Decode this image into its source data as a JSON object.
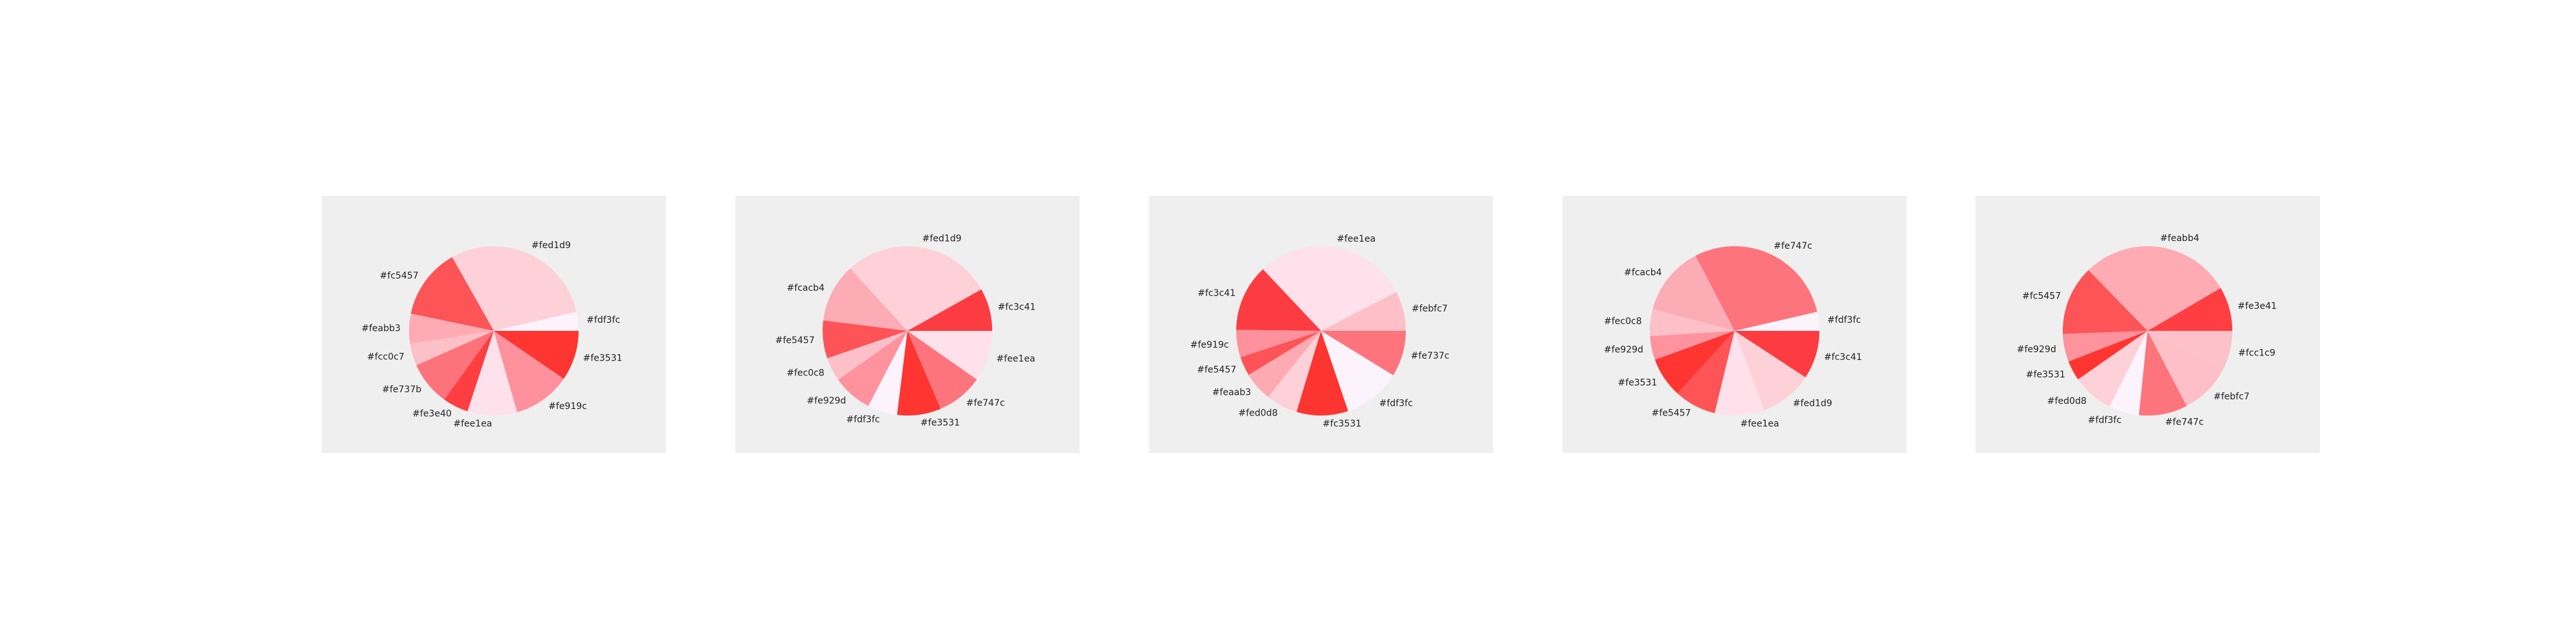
{
  "chart_data": [
    {
      "type": "pie",
      "labels": [
        "#fdf3fc",
        "#fed1d9",
        "#fc5457",
        "#feabb3",
        "#fcc0c7",
        "#fe737b",
        "#fe3e40",
        "#fee1ea",
        "#fe919c",
        "#fe3531"
      ],
      "values": [
        3.1,
        25.3,
        11.6,
        4.9,
        3.6,
        7.2,
        4.2,
        8.1,
        9.4,
        8.2
      ],
      "colors": [
        "#fdf3fc",
        "#fed1d9",
        "#fc5457",
        "#feabb3",
        "#fcc0c7",
        "#fe737b",
        "#fe3e40",
        "#fee1ea",
        "#fe919c",
        "#fe3531"
      ]
    },
    {
      "type": "pie",
      "labels": [
        "#fc3c41",
        "#fed1d9",
        "#fcacb4",
        "#fe5457",
        "#fec0c8",
        "#fe929d",
        "#fdf3fc",
        "#fe3531",
        "#fe747c",
        "#fee1ea"
      ],
      "values": [
        7.2,
        25.3,
        9.9,
        6.4,
        4.0,
        6.7,
        5.0,
        7.4,
        7.8,
        8.6
      ],
      "colors": [
        "#fc3c41",
        "#fed1d9",
        "#fcacb4",
        "#fe5457",
        "#fec0c8",
        "#fe929d",
        "#fdf3fc",
        "#fe3531",
        "#fe747c",
        "#fee1ea"
      ]
    },
    {
      "type": "pie",
      "labels": [
        "#febfc7",
        "#fee1ea",
        "#fc3c41",
        "#fe919c",
        "#fe5457",
        "#feaab3",
        "#fed0d8",
        "#fc3531",
        "#fdf3fc",
        "#fe737c"
      ],
      "values": [
        6.4,
        24.8,
        10.8,
        4.4,
        3.1,
        4.7,
        5.1,
        8.3,
        9.3,
        7.4
      ],
      "colors": [
        "#febfc7",
        "#fee1ea",
        "#fc3c41",
        "#fe919c",
        "#fe5457",
        "#feaab3",
        "#fed0d8",
        "#fc3531",
        "#fdf3fc",
        "#fe737c"
      ]
    },
    {
      "type": "pie",
      "labels": [
        "#fdf3fc",
        "#fe747c",
        "#fcacb4",
        "#fec0c8",
        "#fe929d",
        "#fe3531",
        "#fe5457",
        "#fee1ea",
        "#fed1d9",
        "#fc3c41"
      ],
      "values": [
        3.1,
        24.8,
        11.3,
        4.4,
        3.9,
        6.6,
        6.8,
        8.1,
        8.6,
        7.9
      ],
      "colors": [
        "#fdf3fc",
        "#fe747c",
        "#fcacb4",
        "#fec0c8",
        "#fe929d",
        "#fe3531",
        "#fe5457",
        "#fee1ea",
        "#fed1d9",
        "#fc3c41"
      ]
    },
    {
      "type": "pie",
      "labels": [
        "#fe3e41",
        "#feabb4",
        "#fc5457",
        "#fe929d",
        "#fe3531",
        "#fed0d8",
        "#fdf3fc",
        "#fe747c",
        "#febfc7",
        "#fcc1c9"
      ],
      "values": [
        7.3,
        24.9,
        11.5,
        4.6,
        3.3,
        6.8,
        5.0,
        8.0,
        8.4,
        6.6
      ],
      "colors": [
        "#fe3e41",
        "#feabb4",
        "#fc5457",
        "#fe929d",
        "#fe3531",
        "#fed0d8",
        "#fdf3fc",
        "#fe747c",
        "#febfc7",
        "#fcc1c9"
      ]
    }
  ]
}
